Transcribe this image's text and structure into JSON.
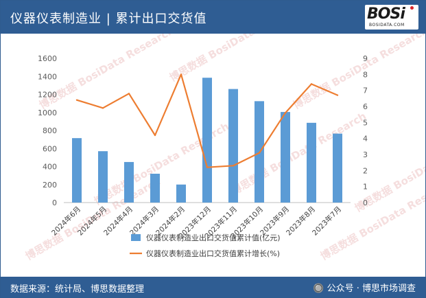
{
  "header": {
    "title": "仪器仪表制造业 | 累计出口交货值"
  },
  "logo": {
    "text": "BOSi",
    "subtext": "BOSIDATA.COM"
  },
  "watermark": {
    "cn": "博思数据",
    "en": "BosiData Research"
  },
  "footer": {
    "source": "数据来源：统计局、博思数据整理",
    "credit": "🔘 公众号 · 博思市场调查"
  },
  "colors": {
    "header_bg": "#2f5d93",
    "bar": "#5b9bd5",
    "line": "#ed7d31"
  },
  "chart_data": {
    "type": "bar",
    "categories": [
      "2024年6月",
      "2024年5月",
      "2024年4月",
      "2024年3月",
      "2024年2月",
      "2023年12月",
      "2023年11月",
      "2023年10月",
      "2023年9月",
      "2023年8月",
      "2023年7月"
    ],
    "series": [
      {
        "name": "仪器仪表制造业出口交货值累计值(亿元)",
        "type": "bar",
        "axis": "left",
        "values": [
          715,
          570,
          450,
          320,
          200,
          1385,
          1260,
          1125,
          1005,
          885,
          765
        ]
      },
      {
        "name": "仪器仪表制造业出口交货值累计增长(%)",
        "type": "line",
        "axis": "right",
        "values": [
          6.4,
          5.9,
          6.8,
          4.2,
          8.0,
          2.2,
          2.3,
          3.1,
          5.6,
          7.4,
          6.7
        ]
      }
    ],
    "ylim_left": [
      0,
      1600
    ],
    "yticks_left": [
      0,
      200,
      400,
      600,
      800,
      1000,
      1200,
      1400,
      1600
    ],
    "ylim_right": [
      0,
      9
    ],
    "yticks_right": [
      0,
      1,
      2,
      3,
      4,
      5,
      6,
      7,
      8,
      9
    ],
    "grid": false,
    "legend_position": "bottom"
  }
}
